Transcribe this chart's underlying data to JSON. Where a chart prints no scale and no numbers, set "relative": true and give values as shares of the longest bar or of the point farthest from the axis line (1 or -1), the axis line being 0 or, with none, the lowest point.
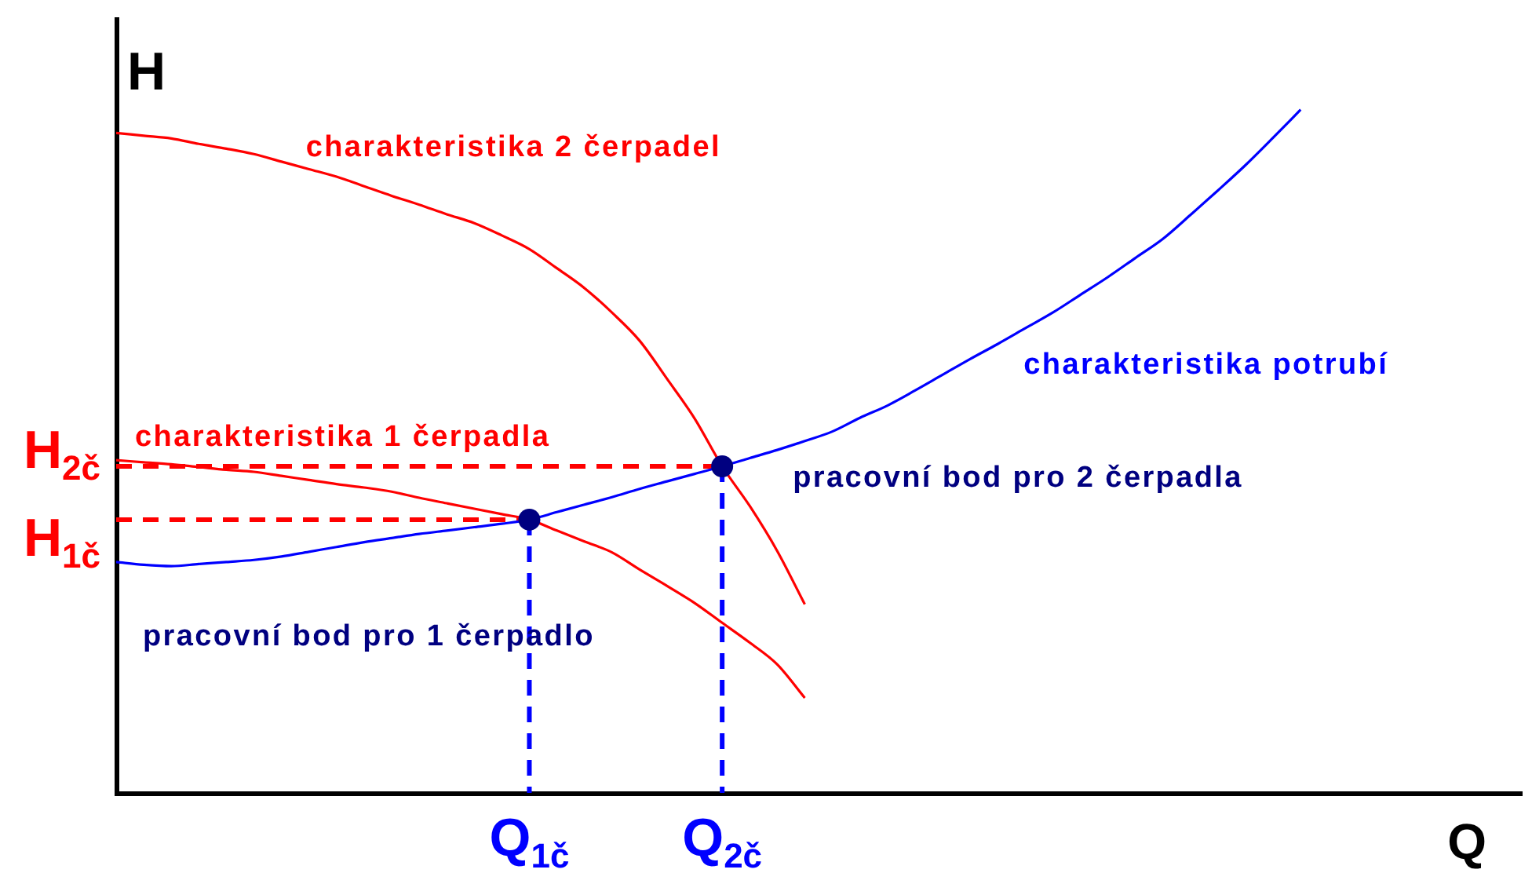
{
  "chart_data": {
    "type": "line",
    "xlabel": "Q",
    "ylabel": "H",
    "relative": true,
    "legend": false,
    "grid": false,
    "tick_labels": "x",
    "marker": "none",
    "line_style": "solid",
    "categories": [
      null,
      null,
      null,
      null,
      null,
      null,
      null,
      null,
      null,
      null,
      null,
      null,
      null,
      null,
      null,
      "Q$_{1č}$",
      null,
      null,
      null,
      null,
      null,
      null,
      "Q$_{2č}$",
      null,
      null,
      null,
      null,
      null,
      null,
      null,
      null,
      null,
      null,
      null,
      null,
      null,
      null,
      null,
      null,
      null,
      null,
      null,
      null,
      null,
      null,
      null,
      null,
      null,
      null,
      null,
      null,
      null
    ],
    "annotations": [
      "H$_{2č}$",
      "H$_{1č}$",
      "pracovní bod pro 1 čerpadlo",
      {
        "text": "pracovní bod pro 2 čerpadla",
        "x": "Q$_{2č}$",
        "y": 0.478
      }
    ],
    "series": [
      {
        "name": "charakteristika 2 čerpadel",
        "color": "#ff0000",
        "values": [
          0.966,
          0.962,
          0.958,
          0.95,
          0.943,
          0.935,
          0.924,
          0.913,
          0.902,
          0.888,
          0.874,
          0.861,
          0.847,
          0.834,
          0.816,
          0.796,
          0.768,
          0.739,
          0.703,
          0.662,
          0.606,
          0.548,
          0.478,
          0.42,
          0.354,
          0.276,
          null,
          null,
          null,
          null,
          null,
          null,
          null,
          null,
          null,
          null,
          null,
          null,
          null,
          null,
          null,
          null,
          null,
          null,
          null,
          null,
          null,
          null,
          null,
          null,
          null,
          null
        ]
      },
      {
        "name": "charakteristika 1 čerpadla",
        "color": "#ff0000",
        "values": [
          0.487,
          0.484,
          0.481,
          0.477,
          0.473,
          0.47,
          0.464,
          0.458,
          0.452,
          0.447,
          0.441,
          0.432,
          0.424,
          0.416,
          0.408,
          0.4,
          0.384,
          0.368,
          0.352,
          0.327,
          0.303,
          0.278,
          0.249,
          0.22,
          0.188,
          0.139,
          null,
          null,
          null,
          null,
          null,
          null,
          null,
          null,
          null,
          null,
          null,
          null,
          null,
          null,
          null,
          null,
          null,
          null,
          null,
          null,
          null,
          null,
          null,
          null,
          null,
          null
        ]
      },
      {
        "name": "charakteristika potrubí",
        "color": "#0000ff",
        "values": [
          0.338,
          0.334,
          0.332,
          0.335,
          0.338,
          0.341,
          0.346,
          0.353,
          0.36,
          0.367,
          0.373,
          0.379,
          0.384,
          0.389,
          0.394,
          0.4,
          0.411,
          0.422,
          0.433,
          0.445,
          0.456,
          0.467,
          0.478,
          0.49,
          0.502,
          0.515,
          0.529,
          0.549,
          0.567,
          0.589,
          0.612,
          0.635,
          0.657,
          0.68,
          0.703,
          0.729,
          0.755,
          0.783,
          0.811,
          0.846,
          0.882,
          0.919,
          0.959,
          1,
          null,
          null,
          null,
          null,
          null,
          null,
          null,
          null
        ]
      },
      {
        "color": "#ff0000",
        "line_style": "dashed",
        "values": [
          0.4,
          0.4,
          0.4,
          0.4,
          0.4,
          0.4,
          0.4,
          0.4,
          0.4,
          0.4,
          0.4,
          0.4,
          0.4,
          0.4,
          0.4,
          0.4,
          null,
          null,
          null,
          null,
          null,
          null,
          null,
          null,
          null,
          null,
          null,
          null,
          null,
          null,
          null,
          null,
          null,
          null,
          null,
          null,
          null,
          null,
          null,
          null,
          null,
          null,
          null,
          null,
          null,
          null,
          null,
          null,
          null,
          null,
          null,
          null
        ]
      },
      {
        "color": "#ff0000",
        "line_style": "dashed",
        "values": [
          0.478,
          0.478,
          0.478,
          0.478,
          0.478,
          0.478,
          0.478,
          0.478,
          0.478,
          0.478,
          0.478,
          0.478,
          0.478,
          0.478,
          0.478,
          0.478,
          0.478,
          0.478,
          0.478,
          0.478,
          0.478,
          0.478,
          0.478,
          null,
          null,
          null,
          null,
          null,
          null,
          null,
          null,
          null,
          null,
          null,
          null,
          null,
          null,
          null,
          null,
          null,
          null,
          null,
          null,
          null,
          null,
          null,
          null,
          null,
          null,
          null,
          null,
          null
        ]
      },
      {
        "color": "#0000ff",
        "line_style": "dashed",
        "x": [
          "Q$_{1č}$",
          "Q$_{1č}$"
        ],
        "values": [
          0.4,
          0
        ]
      },
      {
        "color": "#0000ff",
        "line_style": "dashed",
        "x": [
          "Q$_{2č}$",
          "Q$_{2č}$"
        ],
        "values": [
          0.478,
          0
        ]
      },
      {
        "type": "scatter",
        "marker": "circle",
        "color": "#000080",
        "x": [
          "Q$_{1č}$",
          "Q$_{2č}$"
        ],
        "values": [
          0.4,
          0.478
        ]
      }
    ]
  }
}
